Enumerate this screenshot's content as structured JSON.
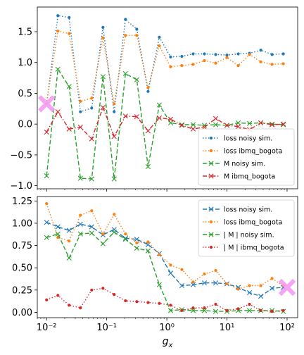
{
  "chart_data": [
    {
      "type": "line",
      "xscale": "log",
      "xlim": [
        0.007,
        150
      ],
      "ylim": [
        -1.05,
        1.9
      ],
      "yticks": [
        -1.0,
        -0.5,
        0.0,
        0.5,
        1.0,
        1.5
      ],
      "ytick_labels": [
        "−1.0",
        "−0.5",
        "0.0",
        "0.5",
        "1.0",
        "1.5"
      ],
      "legend_position": "lower right",
      "x": [
        0.01,
        0.0154,
        0.0237,
        0.0365,
        0.0562,
        0.0866,
        0.133,
        0.205,
        0.316,
        0.487,
        0.75,
        1.155,
        1.778,
        2.738,
        4.217,
        6.494,
        10.0,
        15.4,
        23.71,
        36.52,
        56.23,
        86.6
      ],
      "series": [
        {
          "name": "loss noisy sim.",
          "color": "#1f77b4",
          "style": "dotted",
          "marker": "dot",
          "values": [
            0.33,
            1.76,
            1.73,
            0.2,
            0.26,
            1.57,
            0.2,
            1.7,
            1.54,
            0.53,
            1.41,
            1.09,
            1.1,
            1.14,
            1.14,
            1.13,
            1.12,
            1.14,
            1.15,
            1.2,
            1.13,
            1.14
          ]
        },
        {
          "name": "loss ibmq_bogota",
          "color": "#ff7f0e",
          "style": "dotted",
          "marker": "dot",
          "values": [
            0.33,
            1.51,
            1.47,
            0.37,
            0.42,
            1.4,
            0.33,
            1.44,
            1.44,
            0.59,
            1.27,
            0.93,
            0.95,
            0.97,
            1.03,
            0.99,
            1.08,
            0.95,
            1.13,
            1.01,
            0.97,
            0.98
          ]
        },
        {
          "name": "M noisy sim.",
          "color": "#2ca02c",
          "style": "dashed",
          "marker": "x",
          "values": [
            -0.84,
            0.89,
            0.61,
            -0.88,
            -0.89,
            0.77,
            -0.89,
            0.82,
            0.72,
            -0.69,
            0.31,
            0.02,
            -0.01,
            -0.01,
            -0.02,
            -0.01,
            -0.02,
            0.02,
            0.01,
            0.02,
            0.0,
            -0.01
          ]
        },
        {
          "name": "M ibmq_bogota",
          "color": "#d62728",
          "style": "dashdot",
          "marker": "x",
          "values": [
            -0.13,
            0.2,
            -0.08,
            -0.05,
            -0.24,
            0.27,
            -0.2,
            0.13,
            0.12,
            -0.11,
            0.1,
            0.08,
            -0.02,
            -0.08,
            -0.05,
            0.09,
            -0.02,
            -0.04,
            -0.09,
            0.02,
            -0.01,
            0.0
          ]
        }
      ],
      "highlight": {
        "x": 0.01,
        "y": 0.33,
        "color": "#f59cf2",
        "marker": "X"
      }
    },
    {
      "type": "line",
      "xscale": "log",
      "xlim": [
        0.007,
        150
      ],
      "ylim": [
        -0.06,
        1.3
      ],
      "yticks": [
        0.0,
        0.25,
        0.5,
        0.75,
        1.0,
        1.25
      ],
      "ytick_labels": [
        "0.00",
        "0.25",
        "0.50",
        "0.75",
        "1.00",
        "1.25"
      ],
      "xticks": [
        0.01,
        0.1,
        1,
        10,
        100
      ],
      "xtick_labels": [
        "10⁻²",
        "10⁻¹",
        "10⁰",
        "10¹",
        "10²"
      ],
      "xlabel": "g_x",
      "legend_position": "upper right",
      "x": [
        0.01,
        0.0154,
        0.0237,
        0.0365,
        0.0562,
        0.0866,
        0.133,
        0.205,
        0.316,
        0.487,
        0.75,
        1.155,
        1.778,
        2.738,
        4.217,
        6.494,
        10.0,
        15.4,
        23.71,
        36.52,
        56.23,
        86.6
      ],
      "series": [
        {
          "name": "loss noisy sim.",
          "color": "#1f77b4",
          "style": "dashed",
          "marker": "x",
          "values": [
            1.01,
            0.96,
            0.92,
            0.99,
            0.96,
            0.87,
            0.93,
            0.83,
            0.82,
            0.76,
            0.66,
            0.44,
            0.3,
            0.31,
            0.33,
            0.33,
            0.32,
            0.28,
            0.22,
            0.18,
            0.27,
            0.28
          ]
        },
        {
          "name": "loss ibmq_bogota",
          "color": "#ff7f0e",
          "style": "dotted",
          "marker": "dot",
          "values": [
            1.22,
            0.84,
            0.8,
            1.09,
            1.14,
            0.88,
            1.1,
            0.88,
            0.78,
            0.79,
            0.65,
            0.53,
            0.48,
            0.34,
            0.43,
            0.47,
            0.32,
            0.26,
            0.3,
            0.3,
            0.38,
            0.3
          ]
        },
        {
          "name": "| M |  noisy sim.",
          "color": "#2ca02c",
          "style": "dashed",
          "marker": "x",
          "values": [
            0.84,
            0.88,
            0.61,
            0.88,
            0.89,
            0.77,
            0.9,
            0.82,
            0.72,
            0.69,
            0.31,
            0.02,
            0.03,
            0.02,
            0.02,
            0.01,
            0.01,
            0.02,
            0.02,
            0.02,
            0.02,
            0.01
          ]
        },
        {
          "name": "| M |  ibmq_bogota",
          "color": "#d62728",
          "style": "dotted",
          "marker": "dot",
          "values": [
            0.14,
            0.19,
            0.08,
            0.05,
            0.25,
            0.27,
            0.2,
            0.13,
            0.12,
            0.11,
            0.1,
            0.08,
            0.02,
            0.05,
            0.05,
            0.09,
            0.02,
            0.04,
            0.09,
            0.02,
            0.01,
            0.02
          ]
        }
      ],
      "highlight": {
        "x": 100,
        "y": 0.28,
        "color": "#f59cf2",
        "marker": "X"
      }
    }
  ]
}
